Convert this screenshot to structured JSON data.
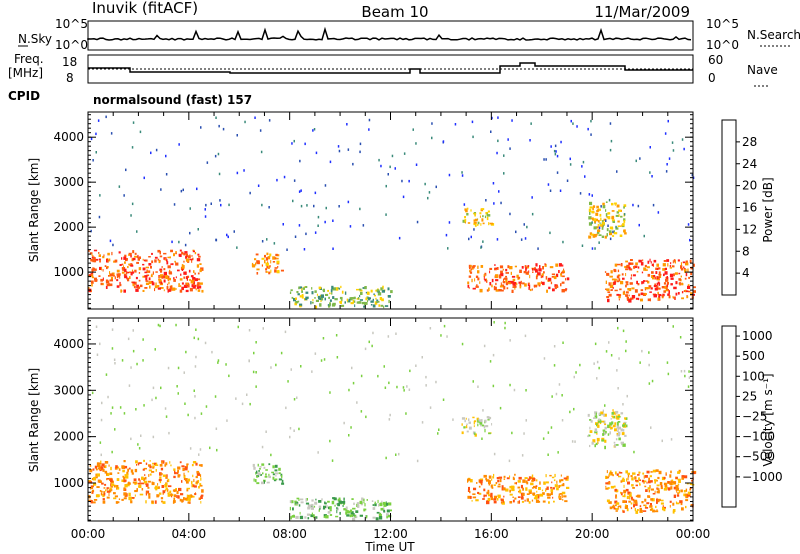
{
  "header": {
    "station": "Inuvik (fitACF)",
    "beam": "Beam 10",
    "date": "11/Mar/2009"
  },
  "noise_panel": {
    "left_label": "N.Sky",
    "right_label": "N.Search",
    "left_ticks": [
      "10^5",
      "10^0"
    ],
    "right_ticks": [
      "10^5",
      "10^0"
    ]
  },
  "freq_panel": {
    "left_label_1": "Freq.",
    "left_label_2": "[MHz]",
    "right_label": "Nave",
    "left_ticks": [
      "18",
      "8"
    ],
    "right_ticks": [
      "60",
      "0"
    ],
    "cpid_label": "CPID",
    "cpid_text": "normalsound (fast) 157"
  },
  "chart_data": [
    {
      "type": "heatmap",
      "title": "",
      "ylabel": "Slant Range [km]",
      "xlabel": "",
      "yticks": [
        "1000",
        "2000",
        "3000",
        "4000"
      ],
      "ylim": [
        180,
        4560
      ],
      "colorbar": {
        "label": "Power [dB]",
        "labels": [
          "4",
          "8",
          "12",
          "16",
          "20",
          "24",
          "28"
        ],
        "colors": [
          "#1f2fff",
          "#2a4fb0",
          "#3a8a7a",
          "#7fb84a",
          "#ffd000",
          "#ff9a00",
          "#ff5a10",
          "#ff1a1a"
        ]
      },
      "echo_regions": [
        {
          "t_start": 0.0,
          "t_end": 4.5,
          "r_low": 600,
          "r_high": 1500,
          "level": 26
        },
        {
          "t_start": 6.5,
          "t_end": 7.7,
          "r_low": 1000,
          "r_high": 1450,
          "level": 22
        },
        {
          "t_start": 8.0,
          "t_end": 12.0,
          "r_low": 250,
          "r_high": 700,
          "level": 14
        },
        {
          "t_start": 15.0,
          "t_end": 19.0,
          "r_low": 600,
          "r_high": 1200,
          "level": 24
        },
        {
          "t_start": 20.5,
          "t_end": 24.0,
          "r_low": 400,
          "r_high": 1300,
          "level": 26
        },
        {
          "t_start": 14.8,
          "t_end": 16.0,
          "r_low": 2050,
          "r_high": 2450,
          "level": 18
        },
        {
          "t_start": 19.8,
          "t_end": 21.3,
          "r_low": 1800,
          "r_high": 2600,
          "level": 18
        }
      ]
    },
    {
      "type": "heatmap",
      "title": "",
      "ylabel": "Slant Range [km]",
      "xlabel": "Time UT",
      "xticks": [
        "00:00",
        "04:00",
        "08:00",
        "12:00",
        "16:00",
        "20:00",
        "00:00"
      ],
      "yticks": [
        "1000",
        "2000",
        "3000",
        "4000"
      ],
      "xlim": [
        0,
        24
      ],
      "ylim": [
        180,
        4560
      ],
      "colorbar": {
        "label": "Velocity [m s⁻¹]",
        "labels": [
          "1000",
          "500",
          "100",
          "25",
          "−25",
          "−100",
          "−500",
          "−1000"
        ],
        "colors": [
          "#2040c8",
          "#2e7a6a",
          "#3a9a4a",
          "#7ad040",
          "#c8c8c0",
          "#ffc000",
          "#ff8a00",
          "#ff5010",
          "#ff1010"
        ]
      },
      "echo_regions": [
        {
          "t_start": 0.0,
          "t_end": 4.5,
          "r_low": 600,
          "r_high": 1500,
          "velocity": -300
        },
        {
          "t_start": 6.5,
          "t_end": 7.7,
          "r_low": 1000,
          "r_high": 1450,
          "velocity": 60
        },
        {
          "t_start": 8.0,
          "t_end": 12.0,
          "r_low": 250,
          "r_high": 700,
          "velocity": 80
        },
        {
          "t_start": 15.0,
          "t_end": 19.0,
          "r_low": 600,
          "r_high": 1200,
          "velocity": -200
        },
        {
          "t_start": 20.5,
          "t_end": 24.0,
          "r_low": 400,
          "r_high": 1300,
          "velocity": -300
        },
        {
          "t_start": 14.8,
          "t_end": 16.0,
          "r_low": 2050,
          "r_high": 2450,
          "velocity": 0
        },
        {
          "t_start": 19.8,
          "t_end": 21.3,
          "r_low": 1800,
          "r_high": 2600,
          "velocity": 0
        }
      ]
    }
  ]
}
